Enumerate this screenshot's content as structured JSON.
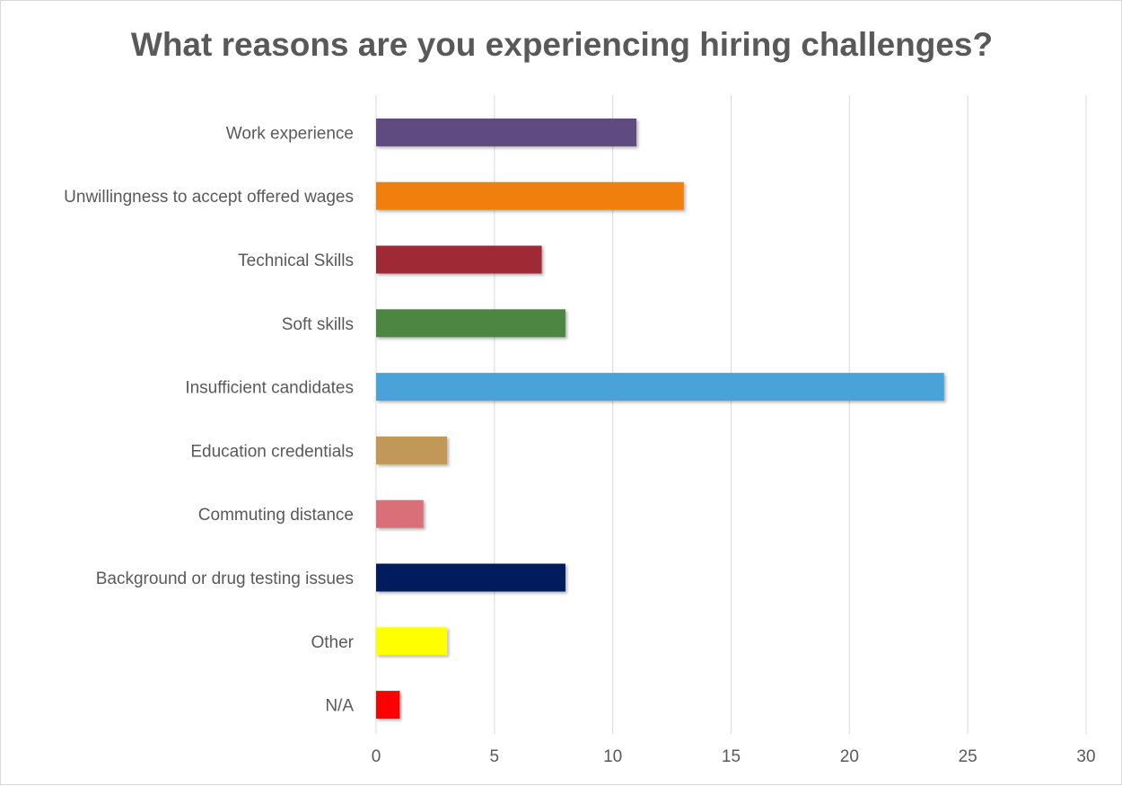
{
  "chart_data": {
    "type": "bar",
    "orientation": "horizontal",
    "title": "What reasons are you experiencing hiring challenges?",
    "xlabel": "",
    "ylabel": "",
    "categories": [
      "Work experience",
      "Unwillingness to accept offered wages",
      "Technical Skills",
      "Soft skills",
      "Insufficient candidates",
      "Education credentials",
      "Commuting distance",
      "Background or drug testing issues",
      "Other",
      "N/A"
    ],
    "values": [
      11,
      13,
      7,
      8,
      24,
      3,
      2,
      8,
      3,
      1
    ],
    "colors": [
      "#5f4b7f",
      "#f07f09",
      "#9f2936",
      "#4e8542",
      "#4aa3d8",
      "#c19859",
      "#d96f78",
      "#001c5b",
      "#ffff00",
      "#ff0000"
    ],
    "xlim": [
      0,
      30
    ],
    "xticks": [
      0,
      5,
      10,
      15,
      20,
      25,
      30
    ],
    "grid": true,
    "gridline_color": "#d9d9d9",
    "legend": "none"
  }
}
